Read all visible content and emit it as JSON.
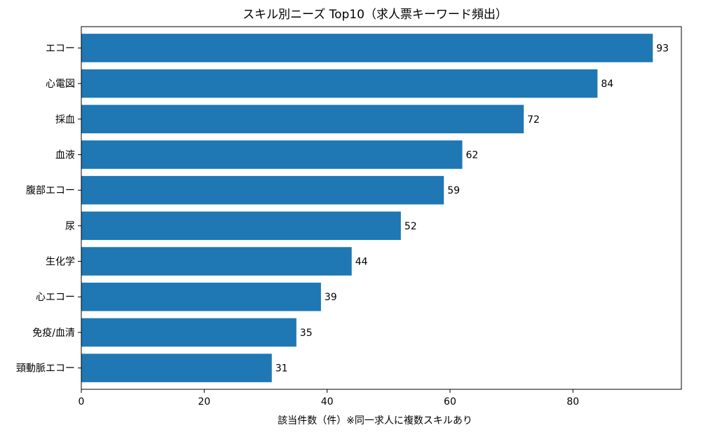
{
  "chart_data": {
    "type": "bar",
    "orientation": "horizontal",
    "title": "スキル別ニーズ Top10（求人票キーワード頻出）",
    "xlabel": "該当件数（件）※同一求人に複数スキルあり",
    "ylabel": "",
    "categories": [
      "エコー",
      "心電図",
      "採血",
      "血液",
      "腹部エコー",
      "尿",
      "生化学",
      "心エコー",
      "免疫/血清",
      "頸動脈エコー"
    ],
    "values": [
      93,
      84,
      72,
      62,
      59,
      52,
      44,
      39,
      35,
      31
    ],
    "xlim": [
      0,
      97.65
    ],
    "xticks": [
      0,
      20,
      40,
      60,
      80
    ],
    "grid": false,
    "bar_color": "#1f77b4",
    "data_labels": true
  }
}
